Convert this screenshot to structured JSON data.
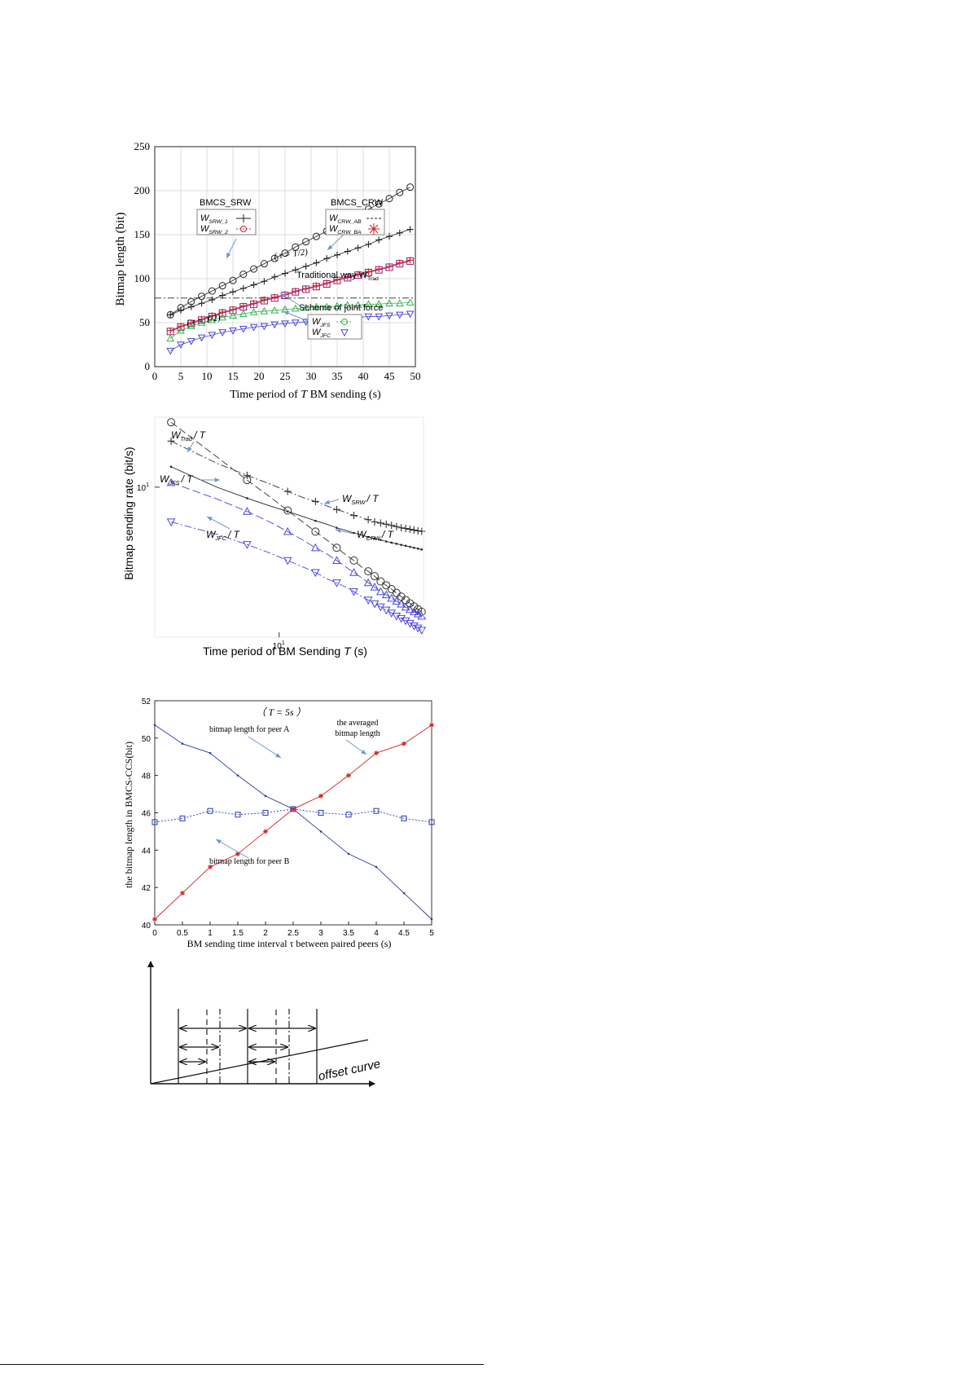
{
  "chart_data": [
    {
      "type": "line",
      "xlabel_parts": [
        "Time period of ",
        "T",
        " BM sending",
        "(s)"
      ],
      "ylabel": "Bitmap length  (bit)",
      "xlim": [
        0,
        50
      ],
      "ylim": [
        0,
        250
      ],
      "xticks": [
        0,
        5,
        10,
        15,
        20,
        25,
        30,
        35,
        40,
        45,
        50
      ],
      "yticks": [
        0,
        50,
        100,
        150,
        200,
        250
      ],
      "grid": true,
      "x": [
        3,
        5,
        7,
        9,
        11,
        13,
        15,
        17,
        19,
        21,
        23,
        25,
        27,
        29,
        31,
        33,
        35,
        37,
        39,
        41,
        43,
        45,
        47,
        49
      ],
      "series": [
        {
          "name": "W_SRW_1",
          "values": [
            59,
            64,
            68,
            72,
            76,
            81,
            85,
            89,
            93,
            97,
            102,
            106,
            110,
            114,
            118,
            123,
            127,
            131,
            135,
            139,
            144,
            148,
            152,
            156
          ]
        },
        {
          "name": "W_SRW_2",
          "values": [
            59,
            67,
            74,
            80,
            86,
            92,
            98,
            105,
            111,
            117,
            123,
            129,
            136,
            142,
            148,
            154,
            160,
            167,
            173,
            179,
            185,
            191,
            198,
            204
          ]
        },
        {
          "name": "W_CRW_AB",
          "values": [
            40,
            45,
            49,
            53,
            57,
            61,
            64,
            68,
            71,
            75,
            78,
            81,
            85,
            88,
            91,
            94,
            98,
            101,
            104,
            107,
            110,
            113,
            117,
            120
          ]
        },
        {
          "name": "W_CRW_BA",
          "values": [
            41,
            46,
            50,
            54,
            58,
            62,
            65,
            69,
            72,
            76,
            79,
            82,
            86,
            89,
            92,
            95,
            99,
            102,
            105,
            108,
            111,
            114,
            118,
            121
          ]
        },
        {
          "name": "W_JFS",
          "values": [
            32,
            41,
            46,
            50,
            53,
            56,
            58,
            60,
            62,
            63,
            64,
            65,
            66,
            67,
            68,
            68,
            69,
            70,
            70,
            71,
            71,
            72,
            72,
            73
          ]
        },
        {
          "name": "W_JFC",
          "values": [
            18,
            25,
            29,
            33,
            36,
            39,
            41,
            43,
            45,
            46,
            48,
            49,
            50,
            51,
            52,
            53,
            54,
            55,
            56,
            57,
            57,
            58,
            59,
            60
          ]
        }
      ],
      "trad_value": 78,
      "legend_srw": {
        "title": "BMCS_SRW",
        "items": [
          "W_SRW_1",
          "W_SRW_2"
        ]
      },
      "legend_crw": {
        "title": "BMCS_CRW",
        "items": [
          "W_CRW_AB",
          "W_CRW_BA"
        ]
      },
      "legend_joint": {
        "items": [
          "W_JFS",
          "W_JFC"
        ]
      },
      "annotations": {
        "tau_upper": "( τ = T/2)",
        "tau_lower": "( τ = T/2)",
        "traditional": "Traditional way W",
        "traditional_sub": "Trad",
        "joint": "Scheme of joint  force"
      }
    },
    {
      "type": "line",
      "log_scale": "both",
      "xlabel": "Time period of BM Sending",
      "xlabel_var": "T",
      "xlabel_unit": "(s)",
      "ylabel": "Bitmap sending rate   (bit/s)",
      "xtick_label": "10",
      "xtick_exp": "1",
      "ytick_label": "10",
      "ytick_exp": "1",
      "x": [
        3,
        5,
        7,
        9,
        11,
        13,
        15,
        17,
        19,
        21,
        23,
        25,
        27,
        29,
        31,
        33,
        35,
        37,
        39,
        41,
        43,
        45,
        47,
        49
      ],
      "series": [
        {
          "name": "W_Trad/T",
          "values": [
            26,
            15.6,
            11.1,
            8.7,
            7.1,
            6.0,
            5.2,
            4.6,
            4.1,
            3.7,
            3.4,
            3.1,
            2.9,
            2.7,
            2.5,
            2.36,
            2.23,
            2.11,
            2.0,
            1.9,
            1.81,
            1.73,
            1.66,
            1.6
          ]
        },
        {
          "name": "W_SRW/T",
          "values": [
            19.7,
            14.2,
            11.9,
            10.5,
            9.4,
            8.6,
            8.1,
            7.6,
            7.2,
            6.9,
            6.6,
            6.4,
            6.2,
            6.0,
            5.9,
            5.8,
            5.7,
            5.6,
            5.5,
            5.45,
            5.38,
            5.32,
            5.26,
            5.22
          ]
        },
        {
          "name": "W_CRW/T",
          "values": [
            13.5,
            10.0,
            8.5,
            7.6,
            7.0,
            6.5,
            6.1,
            5.8,
            5.5,
            5.3,
            5.1,
            4.95,
            4.8,
            4.7,
            4.6,
            4.5,
            4.42,
            4.35,
            4.28,
            4.22,
            4.16,
            4.1,
            4.05,
            4.0
          ]
        },
        {
          "name": "W_JFS/T",
          "values": [
            10.7,
            8.4,
            7.0,
            6.0,
            5.2,
            4.6,
            4.1,
            3.75,
            3.4,
            3.1,
            2.85,
            2.65,
            2.45,
            2.3,
            2.15,
            2.05,
            1.95,
            1.87,
            1.79,
            1.71,
            1.65,
            1.6,
            1.55,
            1.5
          ]
        },
        {
          "name": "W_JFC/T",
          "values": [
            6.0,
            5.0,
            4.3,
            3.8,
            3.4,
            3.1,
            2.85,
            2.6,
            2.45,
            2.3,
            2.15,
            2.0,
            1.9,
            1.8,
            1.72,
            1.64,
            1.57,
            1.5,
            1.45,
            1.4,
            1.35,
            1.3,
            1.26,
            1.22
          ]
        }
      ],
      "labels": {
        "trad": "W",
        "trad_sub": "Trad",
        "srw": "W",
        "srw_sub": "SRW",
        "crw": "W",
        "crw_sub": "CRW",
        "jfs": "W",
        "jfs_sub": "JFS",
        "jfc": "W",
        "jfc_sub": "JFC",
        "suffix": "/ T",
        "crw_suffix": "/ T"
      }
    },
    {
      "type": "line",
      "title": "（ T = 5s ）",
      "xlabel": "BM sending time interval τ  between paired peers  (s)",
      "ylabel": "the bitmap length in BMCS-CCS(bit)",
      "xlim": [
        0,
        5
      ],
      "ylim": [
        40,
        52
      ],
      "xticks": [
        "0",
        "0.5",
        "1",
        "1.5",
        "2",
        "2.5",
        "3",
        "3.5",
        "4",
        "4.5",
        "5"
      ],
      "yticks": [
        "40",
        "42",
        "44",
        "46",
        "48",
        "50",
        "52"
      ],
      "x": [
        0,
        0.5,
        1,
        1.5,
        2,
        2.5,
        3,
        3.5,
        4,
        4.5,
        5
      ],
      "series": [
        {
          "name": "bitmap length for peer A",
          "values": [
            50.7,
            49.7,
            49.2,
            48.0,
            46.9,
            46.2,
            45.0,
            43.8,
            43.1,
            41.7,
            40.3
          ]
        },
        {
          "name": "bitmap length for peer B",
          "values": [
            40.3,
            41.7,
            43.1,
            43.8,
            45.0,
            46.2,
            46.9,
            48.0,
            49.2,
            49.7,
            50.7
          ]
        },
        {
          "name": "the averaged bitmap length",
          "values": [
            45.5,
            45.7,
            46.1,
            45.9,
            46.0,
            46.2,
            46.0,
            45.9,
            46.1,
            45.7,
            45.5
          ]
        }
      ],
      "annotations": {
        "peer_a": "bitmap length for peer A",
        "peer_b": "bitmap length for peer B",
        "avg_line1": "the averaged",
        "avg_line2": "bitmap length"
      }
    }
  ],
  "diagram": {
    "curve_label": "offset curve"
  },
  "colors": {
    "srw": "#222222",
    "crw": "#8b1a7a",
    "jfs": "#33b34a",
    "jfc": "#4a46d8",
    "red": "#d42020",
    "blue": "#2a3aa8",
    "grid": "#d0d0d0",
    "arrow": "#6f98c8"
  }
}
